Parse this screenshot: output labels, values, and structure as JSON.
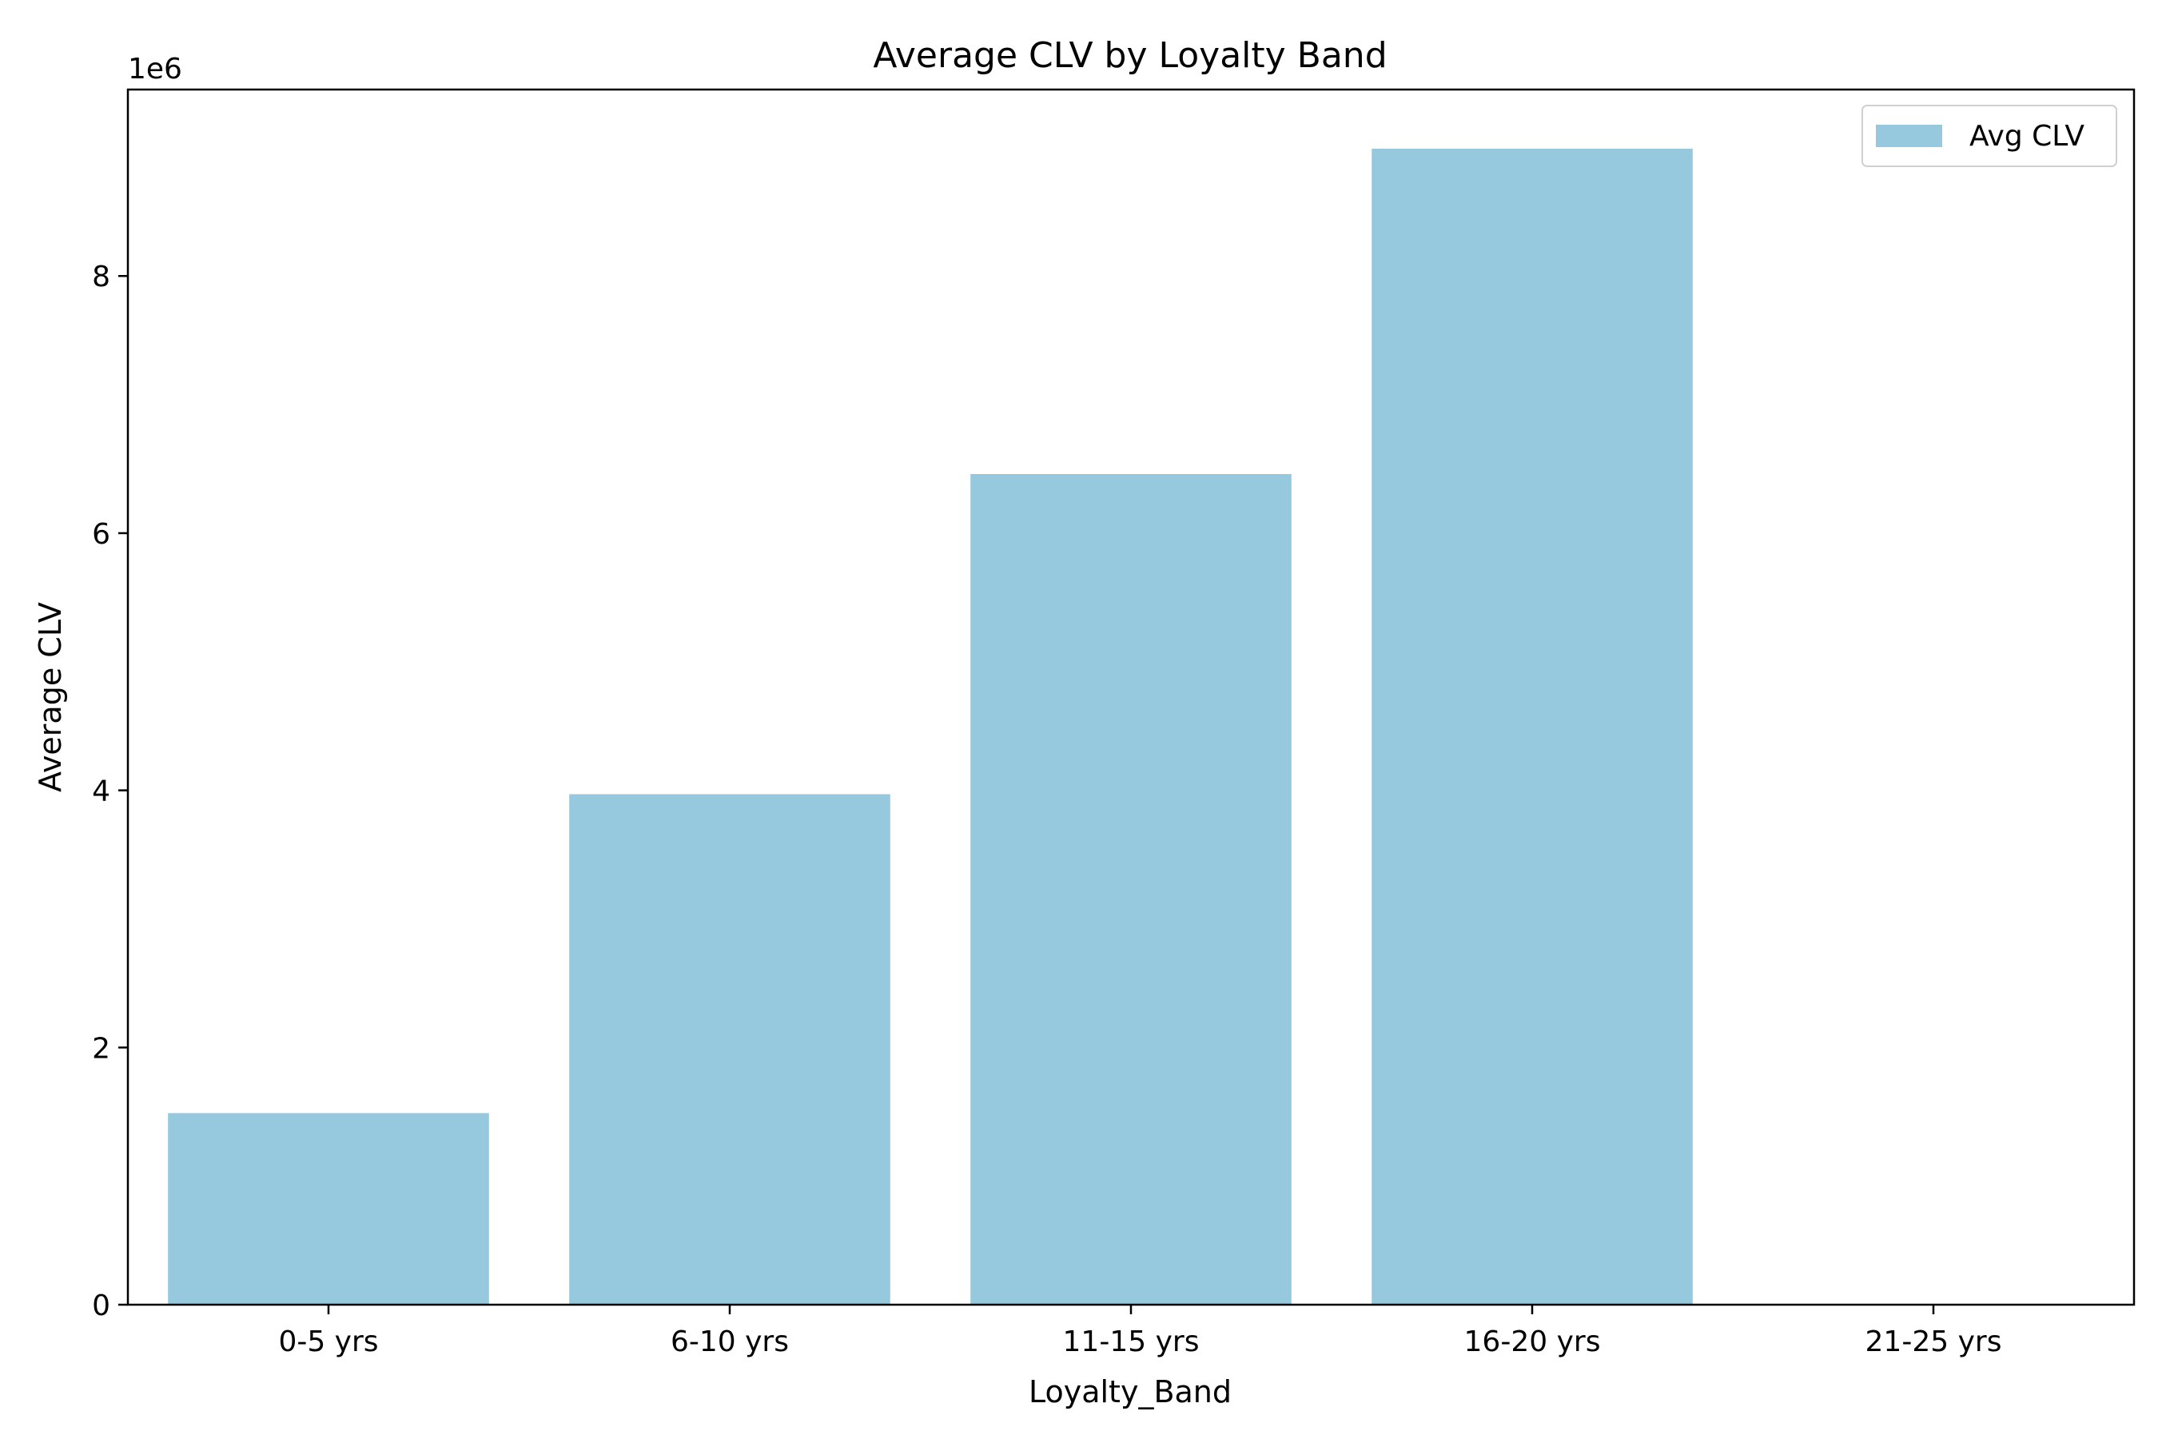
{
  "chart_data": {
    "type": "bar",
    "title": "Average CLV by Loyalty Band",
    "xlabel": "Loyalty_Band",
    "ylabel": "Average CLV",
    "offset_text": "1e6",
    "categories": [
      "0-5 yrs",
      "6-10 yrs",
      "11-15 yrs",
      "16-20 yrs",
      "21-25 yrs"
    ],
    "series": [
      {
        "name": "Avg CLV",
        "values": [
          1.49,
          3.97,
          6.46,
          8.99,
          0
        ]
      }
    ],
    "ylim": [
      0,
      9.45
    ],
    "yticks": [
      "0",
      "2",
      "4",
      "6",
      "8"
    ],
    "bar_color": "#96c8de",
    "legend_position": "top-right",
    "grid": false
  }
}
